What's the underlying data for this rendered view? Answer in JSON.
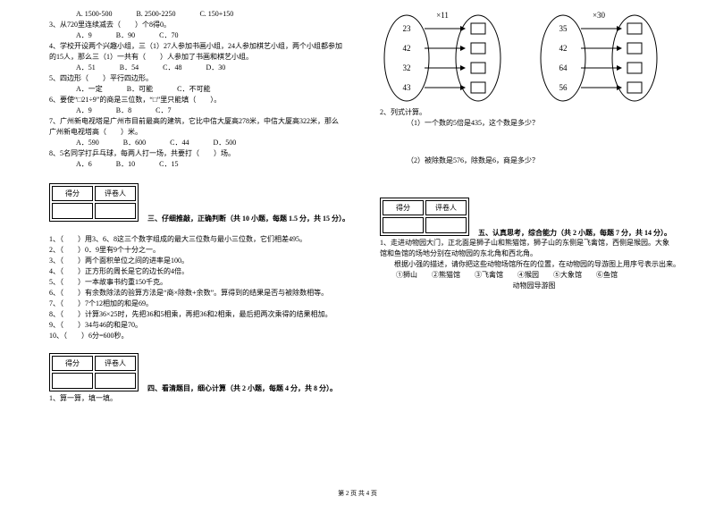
{
  "left": {
    "q2_opts": {
      "a": "A. 1500-500",
      "b": "B. 2500-2250",
      "c": "C. 150+150"
    },
    "q3_text": "3、从720里连续减去（　　）个8得0。",
    "q3_opts": {
      "a": "A．9",
      "b": "B．90",
      "c": "C．70"
    },
    "q4_text1": "4、学校开设两个兴趣小组，三（1）27人参加书画小组，24人参加棋艺小组，两个小组都参加",
    "q4_text2": "的15人，那么三（1）一共有（　　）人参加了书画和棋艺小组。",
    "q4_opts": {
      "a": "A．51",
      "b": "B．54",
      "c": "C．48",
      "d": "D．30"
    },
    "q5_text": "5、四边形（　　）平行四边形。",
    "q5_opts": {
      "a": "A．一定",
      "b": "B．可能",
      "c": "C．不可能"
    },
    "q6_text": "6、要使“□21÷9”的商是三位数，“□”里只能填（　　）。",
    "q6_opts": {
      "a": "A．9",
      "b": "B．8",
      "c": "C．7"
    },
    "q7_text1": "7、广州新电视塔是广州市目前最高的建筑，它比中信大厦高278米，中信大厦高322米，那么",
    "q7_text2": "广州新电视塔高（　　）米。",
    "q7_opts": {
      "a": "A．590",
      "b": "B．600",
      "c": "C．44",
      "d": "D．500"
    },
    "q8_text": "8、5名同学打乒乓球，每两人打一场，共要打（　　）场。",
    "q8_opts": {
      "a": "A．6",
      "b": "B．10",
      "c": "C．15"
    },
    "scorebox": {
      "sl": "得分",
      "rl": "评卷人"
    },
    "sec3_title": "三、仔细推敲，正确判断（共 10 小题，每题 1.5 分，共 15 分）。",
    "tf1": "1、（　　）用3、6、8这三个数字组成的最大三位数与最小三位数，它们相差495。",
    "tf2": "2、（　　）0．9里有9个十分之一。",
    "tf3": "3、（　　）两个面积单位之间的进率是100。",
    "tf4": "4、（　　）正方形的周长是它的边长的4倍。",
    "tf5": "5、（　　）一本故事书约重150千克。",
    "tf6": "6、（　　）有余数除法的验算方法是“商×除数+余数”。算得到的结果是否与被除数相等。",
    "tf7": "7、（　　）7个12相加的和是69。",
    "tf8": "8、（　　）计算36×25时，先把36和5相乘，再把36和2相乘，最后把两次乘得的结果相加。",
    "tf9": "9、（　　）34与46的和是70。",
    "tf10": "10、（　　）6分=600秒。",
    "sec4_title": "四、看清题目，细心计算（共 2 小题，每题 4 分，共 8 分）。",
    "calc1": "1、算一算，填一填。"
  },
  "right": {
    "ovals": {
      "m1": "×11",
      "m2": "×30",
      "a1": "23",
      "a2": "42",
      "a3": "32",
      "a4": "43",
      "b1": "35",
      "b2": "42",
      "b3": "64",
      "b4": "56",
      "stroke": "#000",
      "fill": "#fff",
      "sq_fill": "#fff"
    },
    "fc_head": "2、列式计算。",
    "fc1": "（1）一个数的5倍是435，这个数是多少？",
    "fc2": "（2）被除数是576，除数是6，商是多少？",
    "scorebox": {
      "sl": "得分",
      "rl": "评卷人"
    },
    "sec5_title": "五、认真思考，综合能力（共 2 小题，每题 7 分，共 14 分）。",
    "zoo1": "1、走进动物园大门，正北面是狮子山和熊猫馆，狮子山的东侧是飞禽馆，西侧是猴园。大象",
    "zoo2": "馆和鱼馆的场地分别在动物园的东北角和西北角。",
    "zoo3": "　　根据小强的描述，请你把这些动物场馆所在的位置，在动物园的导游图上用序号表示出来。",
    "zoo_list": "①狮山　　②熊猫馆　　③飞禽馆　　④猴园　　⑤大象馆　　⑥鱼馆",
    "zoo_map_title": "动物园导游图"
  },
  "footer": "第 2 页 共 4 页"
}
